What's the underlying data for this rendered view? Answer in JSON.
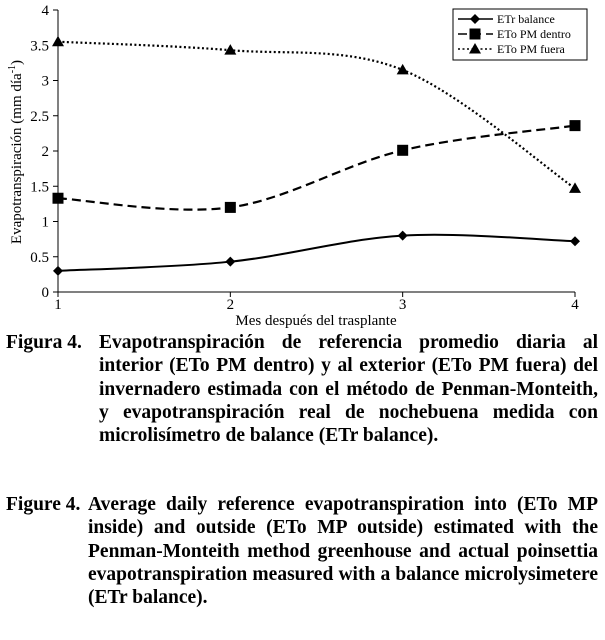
{
  "chart_data": {
    "type": "line",
    "x": [
      1,
      2,
      3,
      4
    ],
    "xlabel": "Mes después del trasplante",
    "ylabel_main": "Evapotranspiración (mm día",
    "ylabel_sup": "-1",
    "ylabel_close": ")",
    "xlim": [
      1,
      4
    ],
    "ylim": [
      0,
      4
    ],
    "x_ticks": [
      "1",
      "2",
      "3",
      "4"
    ],
    "y_ticks": [
      "0",
      "0.5",
      "1",
      "1.5",
      "2",
      "2.5",
      "3",
      "3.5",
      "4"
    ],
    "grid": false,
    "legend_position": "top-right",
    "series": [
      {
        "name": "ETr balance",
        "values": [
          0.3,
          0.43,
          0.8,
          0.72
        ],
        "marker": "diamond",
        "line": "solid"
      },
      {
        "name": "ETo PM dentro",
        "values": [
          1.33,
          1.2,
          2.01,
          2.36
        ],
        "marker": "square",
        "line": "dashed"
      },
      {
        "name": "ETo PM fuera",
        "values": [
          3.55,
          3.43,
          3.15,
          1.47
        ],
        "marker": "triangle",
        "line": "dotted"
      }
    ]
  },
  "caption_es": {
    "label": "Figura 4.",
    "text": "Evapotranspiración de referencia promedio diaria al interior (ETo PM dentro) y al exterior (ETo PM fuera) del invernadero estimada con el método de Penman-Monteith, y evapotranspiración real de nochebuena medida con microlisímetro de balance (ETr balance)."
  },
  "caption_en": {
    "label": "Figure 4.",
    "text": "Average daily reference evapotranspiration into (ETo MP inside) and outside (ETo MP outside) estimated with the Penman-Monteith method greenhouse and actual poinsettia evapotranspiration measured with a balance microlysimetere (ETr balance)."
  }
}
